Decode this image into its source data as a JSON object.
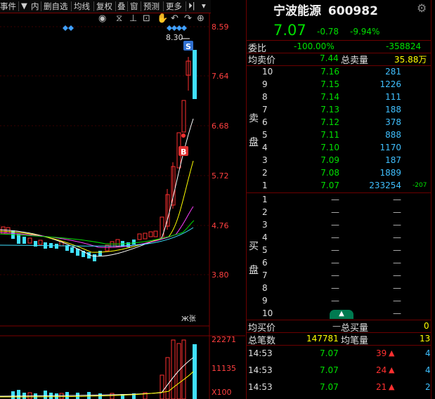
{
  "toolbar": {
    "items": [
      "事件",
      "内",
      "删自选",
      "均线",
      "复权",
      "叠",
      "窗",
      "预测",
      "更多"
    ]
  },
  "chart": {
    "price_axis": [
      "8.59",
      "7.64",
      "6.68",
      "5.72",
      "4.76",
      "3.80"
    ],
    "high_label": "8.30",
    "buy_mark": "B",
    "sell_mark": "S",
    "stat_label": "Ж张",
    "volume_axis": [
      "22271",
      "11135",
      "X100"
    ]
  },
  "stock": {
    "name": "宁波能源",
    "code": "600982",
    "price": "7.07",
    "change": "-0.78",
    "change_pct": "-9.94%"
  },
  "committee": {
    "ratio_label": "委比",
    "ratio_value": "-100.00%",
    "diff_value": "-358824",
    "avg_sell_label": "均卖价",
    "avg_sell_value": "7.44",
    "total_sell_label": "总卖量",
    "total_sell_value": "35.88万"
  },
  "sell_side": {
    "label_1": "卖",
    "label_2": "盘",
    "levels": [
      {
        "level": "10",
        "price": "7.16",
        "volume": "281"
      },
      {
        "level": "9",
        "price": "7.15",
        "volume": "1226"
      },
      {
        "level": "8",
        "price": "7.14",
        "volume": "111"
      },
      {
        "level": "7",
        "price": "7.13",
        "volume": "188"
      },
      {
        "level": "6",
        "price": "7.12",
        "volume": "378"
      },
      {
        "level": "5",
        "price": "7.11",
        "volume": "888"
      },
      {
        "level": "4",
        "price": "7.10",
        "volume": "1170"
      },
      {
        "level": "3",
        "price": "7.09",
        "volume": "187"
      },
      {
        "level": "2",
        "price": "7.08",
        "volume": "1889"
      },
      {
        "level": "1",
        "price": "7.07",
        "volume": "233254",
        "delta": "-207"
      }
    ]
  },
  "buy_side": {
    "label_1": "买",
    "label_2": "盘",
    "levels": [
      "1",
      "2",
      "3",
      "4",
      "5",
      "6",
      "7",
      "8",
      "9",
      "10"
    ],
    "empty": "—"
  },
  "summary": {
    "avg_buy_label": "均买价",
    "avg_buy_value": "—",
    "total_buy_label": "总买量",
    "total_buy_value": "0",
    "total_trades_label": "总笔数",
    "total_trades_value": "147781",
    "avg_trade_label": "均笔量",
    "avg_trade_value": "13"
  },
  "ticks": [
    {
      "time": "14:53",
      "price": "7.07",
      "volume": "39",
      "count": "4"
    },
    {
      "time": "14:53",
      "price": "7.07",
      "volume": "24",
      "count": "4"
    },
    {
      "time": "14:53",
      "price": "7.07",
      "volume": "21",
      "count": "2"
    }
  ]
}
